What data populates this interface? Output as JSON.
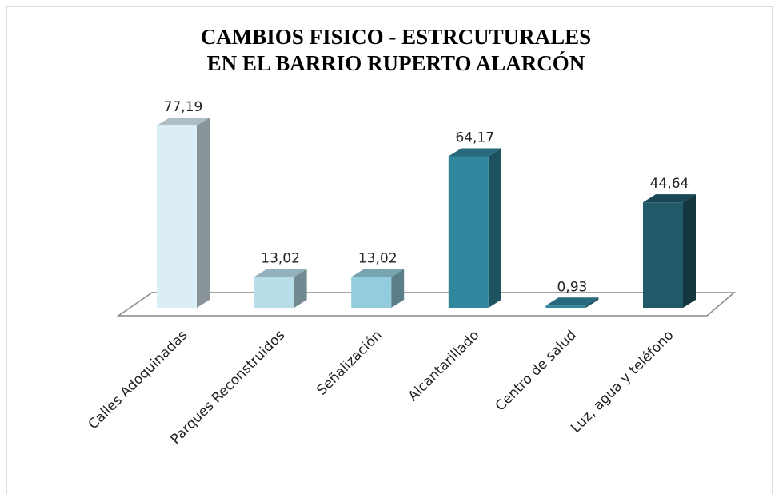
{
  "chart_data": {
    "type": "bar3d",
    "title": "CAMBIOS FISICO - ESTRCUTURALES EN EL BARRIO RUPERTO ALARCÓN",
    "categories": [
      "Calles Adoquinadas",
      "Parques Reconstruidos",
      "Señalización",
      "Alcantarillado",
      "Centro de salud",
      "Luz, agua y teléfono"
    ],
    "values": [
      77.19,
      13.02,
      13.02,
      64.17,
      0.93,
      44.64
    ],
    "value_labels": [
      "77,19",
      "13,02",
      "13,02",
      "64,17",
      "0,93",
      "44,64"
    ],
    "colors": [
      "#dbeef5",
      "#b7dde8",
      "#93cddd",
      "#31859c",
      "#31859c",
      "#215968"
    ]
  }
}
